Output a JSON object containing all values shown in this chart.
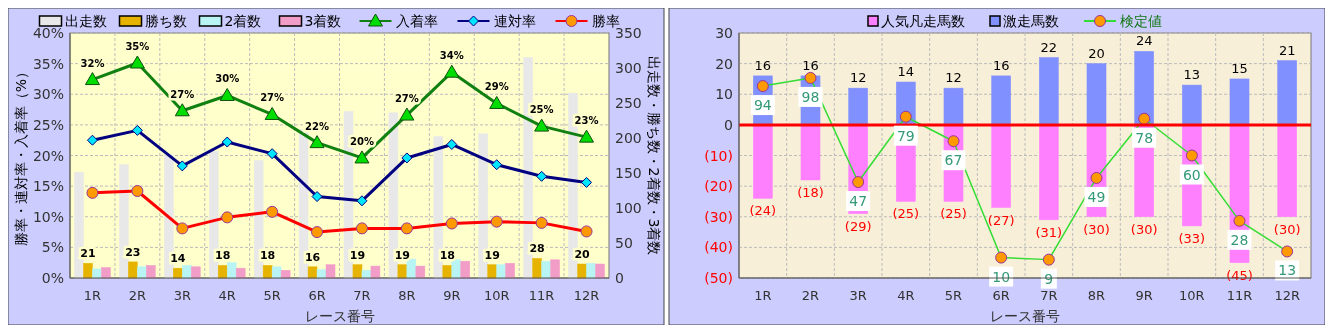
{
  "chart_data": [
    {
      "type": "bar",
      "categories": [
        "1R",
        "2R",
        "3R",
        "4R",
        "5R",
        "6R",
        "7R",
        "8R",
        "9R",
        "10R",
        "11R",
        "12R"
      ],
      "xlabel": "レース番号",
      "ylabel": "勝率・連対率・入着率（%）",
      "y2label": "出走数・勝ち数・2着数・3着数",
      "ylim": [
        0,
        40
      ],
      "yticks": [
        {
          "value": 0,
          "label": "0%"
        },
        {
          "value": 5,
          "label": "5%"
        },
        {
          "value": 10,
          "label": "10%"
        },
        {
          "value": 15,
          "label": "15%"
        },
        {
          "value": 20,
          "label": "20%"
        },
        {
          "value": 25,
          "label": "25%"
        },
        {
          "value": 30,
          "label": "30%"
        },
        {
          "value": 35,
          "label": "35%"
        },
        {
          "value": 40,
          "label": "40%"
        }
      ],
      "y2lim": [
        0,
        350
      ],
      "y2ticks": [
        0,
        50,
        100,
        150,
        200,
        250,
        300,
        350
      ],
      "grid": true,
      "legend": "top",
      "series": [
        {
          "name": "出走数",
          "type": "bar",
          "axis": "y2",
          "color": "#e8e8e8",
          "values": [
            151,
            162,
            176,
            181,
            168,
            212,
            238,
            236,
            202,
            206,
            315,
            264
          ]
        },
        {
          "name": "勝ち数",
          "type": "bar",
          "axis": "y2",
          "color": "#e6b400",
          "values": [
            21,
            23,
            14,
            18,
            18,
            16,
            19,
            19,
            18,
            19,
            28,
            20
          ],
          "value_labels": [
            "21",
            "23",
            "14",
            "18",
            "18",
            "16",
            "19",
            "19",
            "18",
            "19",
            "28",
            "20"
          ]
        },
        {
          "name": "2着数",
          "type": "bar",
          "axis": "y2",
          "color": "#b8f4f4",
          "values": [
            13,
            16,
            18,
            22,
            16,
            12,
            11,
            27,
            26,
            19,
            24,
            21
          ]
        },
        {
          "name": "3着数",
          "type": "bar",
          "axis": "y2",
          "color": "#f29cc8",
          "values": [
            15,
            18,
            16,
            14,
            11,
            19,
            17,
            17,
            24,
            21,
            26,
            20
          ]
        },
        {
          "name": "入着率",
          "type": "line",
          "color": "#108010",
          "marker": "triangle",
          "values": [
            32.4,
            35.1,
            27.3,
            29.8,
            26.7,
            22.1,
            19.6,
            26.6,
            33.6,
            28.5,
            24.8,
            23.0
          ],
          "value_labels": [
            "32%",
            "35%",
            "27%",
            "30%",
            "27%",
            "22%",
            "20%",
            "27%",
            "34%",
            "29%",
            "25%",
            "23%"
          ]
        },
        {
          "name": "連対率",
          "type": "line",
          "color": "#000080",
          "marker": "diamond",
          "values": [
            22.5,
            24.1,
            18.3,
            22.2,
            20.3,
            13.3,
            12.6,
            19.6,
            21.8,
            18.5,
            16.6,
            15.6
          ]
        },
        {
          "name": "勝率",
          "type": "line",
          "color": "#ff0000",
          "marker": "circle",
          "values": [
            13.9,
            14.2,
            8.1,
            9.9,
            10.8,
            7.5,
            8.1,
            8.1,
            8.9,
            9.2,
            9.0,
            7.6
          ]
        }
      ]
    },
    {
      "type": "bar",
      "stacked": true,
      "categories": [
        "1R",
        "2R",
        "3R",
        "4R",
        "5R",
        "6R",
        "7R",
        "8R",
        "9R",
        "10R",
        "11R",
        "12R"
      ],
      "xlabel": "レース番号",
      "ylim": [
        -50,
        30
      ],
      "yticks": [
        {
          "value": -50,
          "label": "(50)"
        },
        {
          "value": -40,
          "label": "(40)"
        },
        {
          "value": -30,
          "label": "(30)"
        },
        {
          "value": -20,
          "label": "(20)"
        },
        {
          "value": -10,
          "label": "(10)"
        },
        0,
        10,
        20,
        30
      ],
      "y2lim": [
        0,
        120
      ],
      "tick_labels": "xy",
      "grid": true,
      "legend": "top",
      "ref_lines": [
        {
          "axis": "y",
          "value": 0,
          "color": "#ff0000"
        }
      ],
      "series": [
        {
          "name": "人気凡走馬数",
          "color": "#ff80ff",
          "values": [
            -24,
            -18,
            -29,
            -25,
            -25,
            -27,
            -31,
            -30,
            -30,
            -33,
            -45,
            -30
          ],
          "value_labels": [
            "(24)",
            "(18)",
            "(29)",
            "(25)",
            "(25)",
            "(27)",
            "(31)",
            "(30)",
            "(30)",
            "(33)",
            "(45)",
            "(30)"
          ]
        },
        {
          "name": "激走馬数",
          "color": "#8090ff",
          "values": [
            16,
            16,
            12,
            14,
            12,
            16,
            22,
            20,
            24,
            13,
            15,
            21
          ],
          "value_labels": [
            "16",
            "16",
            "12",
            "14",
            "12",
            "16",
            "22",
            "20",
            "24",
            "13",
            "15",
            "21"
          ]
        },
        {
          "name": "検定値",
          "type": "line",
          "axis": "y2",
          "color": "#33dd33",
          "marker": "circle",
          "values": [
            94,
            98,
            47,
            79,
            67,
            10,
            9,
            49,
            78,
            60,
            28,
            13
          ],
          "value_labels": [
            "94",
            "98",
            "47",
            "79",
            "67",
            "10",
            "9",
            "49",
            "78",
            "60",
            "28",
            "13"
          ]
        }
      ]
    }
  ]
}
